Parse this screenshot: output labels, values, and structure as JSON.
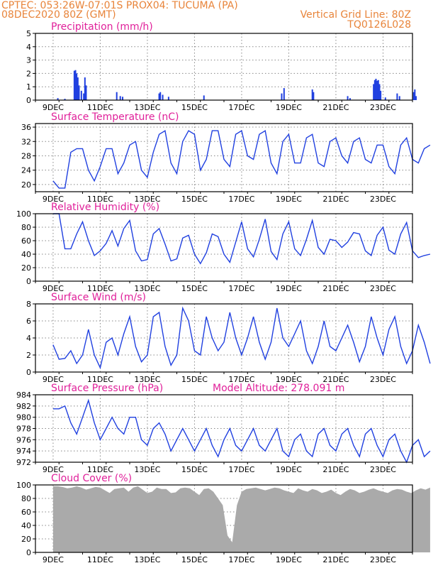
{
  "header": {
    "left1": "CPTEC:  053:26W-07:01S   PROX04: TUCUMA (PA)",
    "left2": "08DEC2020 80Z (GMT)",
    "right1": "Vertical Grid Line: 80Z",
    "right2": "TQ0126L028"
  },
  "x_labels": [
    "9DEC",
    "11DEC",
    "13DEC",
    "15DEC",
    "17DEC",
    "19DEC",
    "21DEC",
    "23DEC"
  ],
  "colors": {
    "series": "#2040e0",
    "cloud": "#aaaaaa",
    "title": "#e0209a",
    "header": "#e8843a"
  },
  "chart_data": [
    {
      "type": "bar",
      "title": "Precipitation (mm/h)",
      "ylim": [
        0,
        5
      ],
      "yticks": [
        "0",
        "1",
        "2",
        "3",
        "4",
        "5"
      ],
      "points": [
        [
          0.2,
          0.15
        ],
        [
          0.5,
          0.1
        ],
        [
          0.9,
          2.2
        ],
        [
          0.95,
          2.25
        ],
        [
          1.0,
          2.0
        ],
        [
          1.05,
          1.7
        ],
        [
          1.1,
          1.1
        ],
        [
          1.2,
          0.7
        ],
        [
          1.3,
          0.5
        ],
        [
          1.35,
          1.7
        ],
        [
          1.4,
          1.1
        ],
        [
          2.7,
          0.6
        ],
        [
          2.85,
          0.3
        ],
        [
          2.95,
          0.25
        ],
        [
          4.5,
          0.5
        ],
        [
          4.55,
          0.6
        ],
        [
          4.65,
          0.4
        ],
        [
          4.9,
          0.25
        ],
        [
          6.4,
          0.35
        ],
        [
          9.7,
          0.5
        ],
        [
          9.8,
          0.9
        ],
        [
          11.0,
          0.8
        ],
        [
          11.05,
          0.6
        ],
        [
          12.5,
          0.3
        ],
        [
          12.6,
          0.15
        ],
        [
          13.6,
          1.2
        ],
        [
          13.65,
          1.5
        ],
        [
          13.7,
          1.6
        ],
        [
          13.75,
          1.45
        ],
        [
          13.8,
          1.5
        ],
        [
          13.85,
          1.2
        ],
        [
          13.9,
          0.7
        ],
        [
          14.1,
          0.2
        ],
        [
          14.6,
          0.5
        ],
        [
          14.7,
          0.3
        ],
        [
          15.3,
          0.6
        ],
        [
          15.35,
          0.8
        ],
        [
          15.4,
          0.3
        ]
      ]
    },
    {
      "type": "line",
      "title": "Surface Temperature (nC)",
      "ylim": [
        18,
        37
      ],
      "yticks": [
        "20",
        "24",
        "28",
        "32",
        "36"
      ],
      "x": [
        0,
        0.25,
        0.5,
        0.75,
        1.0,
        1.25,
        1.5,
        1.75,
        2.0,
        2.25,
        2.5,
        2.75,
        3.0,
        3.25,
        3.5,
        3.75,
        4.0,
        4.25,
        4.5,
        4.75,
        5.0,
        5.25,
        5.5,
        5.75,
        6.0,
        6.25,
        6.5,
        6.75,
        7.0,
        7.25,
        7.5,
        7.75,
        8.0,
        8.25,
        8.5,
        8.75,
        9.0,
        9.25,
        9.5,
        9.75,
        10.0,
        10.25,
        10.5,
        10.75,
        11.0,
        11.25,
        11.5,
        11.75,
        12.0,
        12.25,
        12.5,
        12.75,
        13.0,
        13.25,
        13.5,
        13.75,
        14.0,
        14.25,
        14.5,
        14.75,
        15.0,
        15.25,
        15.5,
        15.75,
        16.0
      ],
      "y": [
        21,
        19,
        19,
        29,
        30,
        30,
        24,
        21,
        25,
        30,
        30,
        23,
        26,
        31,
        32,
        24,
        22,
        29,
        34,
        35,
        26,
        23,
        32,
        35,
        34,
        24,
        27,
        35,
        35,
        27,
        25,
        34,
        35,
        28,
        27,
        34,
        35,
        26,
        23,
        32,
        34,
        26,
        26,
        33,
        34,
        26,
        25,
        32,
        33,
        28,
        26,
        32,
        33,
        27,
        26,
        31,
        31,
        25,
        23,
        31,
        33,
        27,
        26,
        30,
        31
      ]
    },
    {
      "type": "line",
      "title": "Relative Humidity (%)",
      "ylim": [
        0,
        100
      ],
      "yticks": [
        "0",
        "20",
        "40",
        "60",
        "80",
        "100"
      ],
      "x": [
        0,
        0.25,
        0.5,
        0.75,
        1.0,
        1.25,
        1.5,
        1.75,
        2.0,
        2.25,
        2.5,
        2.75,
        3.0,
        3.25,
        3.5,
        3.75,
        4.0,
        4.25,
        4.5,
        4.75,
        5.0,
        5.25,
        5.5,
        5.75,
        6.0,
        6.25,
        6.5,
        6.75,
        7.0,
        7.25,
        7.5,
        7.75,
        8.0,
        8.25,
        8.5,
        8.75,
        9.0,
        9.25,
        9.5,
        9.75,
        10.0,
        10.25,
        10.5,
        10.75,
        11.0,
        11.25,
        11.5,
        11.75,
        12.0,
        12.25,
        12.5,
        12.75,
        13.0,
        13.25,
        13.5,
        13.75,
        14.0,
        14.25,
        14.5,
        14.75,
        15.0,
        15.25,
        15.5,
        15.75,
        16.0
      ],
      "y": [
        100,
        100,
        48,
        48,
        70,
        88,
        60,
        38,
        45,
        56,
        75,
        52,
        78,
        90,
        45,
        30,
        32,
        70,
        78,
        55,
        30,
        33,
        64,
        68,
        40,
        26,
        42,
        70,
        66,
        40,
        28,
        58,
        88,
        48,
        36,
        62,
        92,
        44,
        32,
        70,
        88,
        48,
        38,
        62,
        90,
        50,
        40,
        62,
        60,
        50,
        58,
        72,
        70,
        45,
        38,
        68,
        80,
        46,
        40,
        70,
        87,
        45,
        35,
        38,
        40
      ]
    },
    {
      "type": "line",
      "title": "Surface Wind (m/s)",
      "ylim": [
        0,
        8
      ],
      "yticks": [
        "0",
        "2",
        "4",
        "6",
        "8"
      ],
      "x": [
        0,
        0.25,
        0.5,
        0.75,
        1.0,
        1.25,
        1.5,
        1.75,
        2.0,
        2.25,
        2.5,
        2.75,
        3.0,
        3.25,
        3.5,
        3.75,
        4.0,
        4.25,
        4.5,
        4.75,
        5.0,
        5.25,
        5.5,
        5.75,
        6.0,
        6.25,
        6.5,
        6.75,
        7.0,
        7.25,
        7.5,
        7.75,
        8.0,
        8.25,
        8.5,
        8.75,
        9.0,
        9.25,
        9.5,
        9.75,
        10.0,
        10.25,
        10.5,
        10.75,
        11.0,
        11.25,
        11.5,
        11.75,
        12.0,
        12.25,
        12.5,
        12.75,
        13.0,
        13.25,
        13.5,
        13.75,
        14.0,
        14.25,
        14.5,
        14.75,
        15.0,
        15.25,
        15.5,
        15.75,
        16.0
      ],
      "y": [
        3.2,
        1.5,
        1.6,
        2.5,
        1.0,
        2.0,
        5.0,
        2.0,
        0.5,
        3.5,
        4.0,
        2.0,
        4.5,
        6.5,
        3.0,
        1.2,
        2.0,
        6.5,
        7.0,
        3.0,
        0.8,
        2.0,
        7.5,
        6.0,
        2.5,
        2.0,
        6.5,
        4.0,
        2.5,
        3.5,
        7.0,
        4.0,
        2.0,
        4.0,
        6.5,
        3.5,
        1.5,
        3.5,
        7.5,
        4.0,
        3.0,
        4.5,
        6.0,
        2.5,
        1.0,
        3.0,
        6.0,
        3.0,
        2.5,
        4.0,
        5.5,
        3.5,
        1.2,
        3.0,
        6.5,
        4.0,
        2.0,
        5.0,
        6.5,
        3.0,
        1.0,
        2.5,
        5.5,
        3.5,
        1.0
      ]
    },
    {
      "type": "line",
      "title": "Surface Pressure (hPa)",
      "annotation": "Model Altitude: 278.091  m",
      "ylim": [
        972,
        984
      ],
      "yticks": [
        "972",
        "974",
        "976",
        "978",
        "980",
        "982",
        "984"
      ],
      "x": [
        0,
        0.25,
        0.5,
        0.75,
        1.0,
        1.25,
        1.5,
        1.75,
        2.0,
        2.25,
        2.5,
        2.75,
        3.0,
        3.25,
        3.5,
        3.75,
        4.0,
        4.25,
        4.5,
        4.75,
        5.0,
        5.25,
        5.5,
        5.75,
        6.0,
        6.25,
        6.5,
        6.75,
        7.0,
        7.25,
        7.5,
        7.75,
        8.0,
        8.25,
        8.5,
        8.75,
        9.0,
        9.25,
        9.5,
        9.75,
        10.0,
        10.25,
        10.5,
        10.75,
        11.0,
        11.25,
        11.5,
        11.75,
        12.0,
        12.25,
        12.5,
        12.75,
        13.0,
        13.25,
        13.5,
        13.75,
        14.0,
        14.25,
        14.5,
        14.75,
        15.0,
        15.25,
        15.5,
        15.75,
        16.0
      ],
      "y": [
        981.5,
        981.5,
        982,
        979,
        977,
        980,
        983,
        979,
        976,
        978,
        980,
        978,
        977,
        980,
        980,
        976,
        975,
        978,
        979,
        977,
        974,
        976,
        978,
        976,
        974,
        976,
        978,
        975,
        973,
        976,
        978,
        975,
        974,
        976,
        978,
        975,
        974,
        976,
        978,
        974,
        973,
        976,
        977,
        974,
        973,
        977,
        978,
        975,
        974,
        977,
        978,
        975,
        973,
        977,
        978,
        975,
        973,
        976,
        977,
        974,
        972,
        975,
        976,
        973,
        974
      ]
    },
    {
      "type": "area",
      "title": "Cloud Cover (%)",
      "ylim": [
        0,
        100
      ],
      "yticks": [
        "0",
        "20",
        "40",
        "60",
        "80",
        "100"
      ],
      "x": [
        0,
        0.2,
        0.4,
        0.6,
        0.8,
        1.0,
        1.2,
        1.4,
        1.6,
        1.8,
        2.0,
        2.2,
        2.4,
        2.6,
        2.8,
        3.0,
        3.2,
        3.4,
        3.6,
        3.8,
        4.0,
        4.2,
        4.4,
        4.6,
        4.8,
        5.0,
        5.2,
        5.4,
        5.6,
        5.8,
        6.0,
        6.2,
        6.4,
        6.6,
        6.8,
        7.0,
        7.2,
        7.4,
        7.6,
        7.8,
        8.0,
        8.2,
        8.4,
        8.6,
        8.8,
        9.0,
        9.2,
        9.4,
        9.6,
        9.8,
        10.0,
        10.2,
        10.4,
        10.6,
        10.8,
        11.0,
        11.2,
        11.4,
        11.6,
        11.8,
        12.0,
        12.2,
        12.4,
        12.6,
        12.8,
        13.0,
        13.2,
        13.4,
        13.6,
        13.8,
        14.0,
        14.2,
        14.4,
        14.6,
        14.8,
        15.0,
        15.2,
        15.4,
        15.6,
        15.8,
        16.0
      ],
      "y": [
        98,
        98,
        97,
        95,
        96,
        98,
        96,
        93,
        95,
        97,
        96,
        92,
        88,
        94,
        95,
        96,
        90,
        96,
        98,
        93,
        88,
        90,
        96,
        94,
        94,
        88,
        89,
        95,
        96,
        95,
        90,
        85,
        94,
        95,
        90,
        80,
        70,
        25,
        15,
        70,
        90,
        94,
        95,
        96,
        94,
        92,
        94,
        96,
        95,
        92,
        90,
        88,
        95,
        92,
        90,
        94,
        92,
        88,
        90,
        93,
        88,
        85,
        90,
        94,
        92,
        88,
        90,
        93,
        95,
        92,
        90,
        88,
        92,
        94,
        93,
        90,
        88,
        92,
        95,
        93,
        96
      ]
    }
  ]
}
